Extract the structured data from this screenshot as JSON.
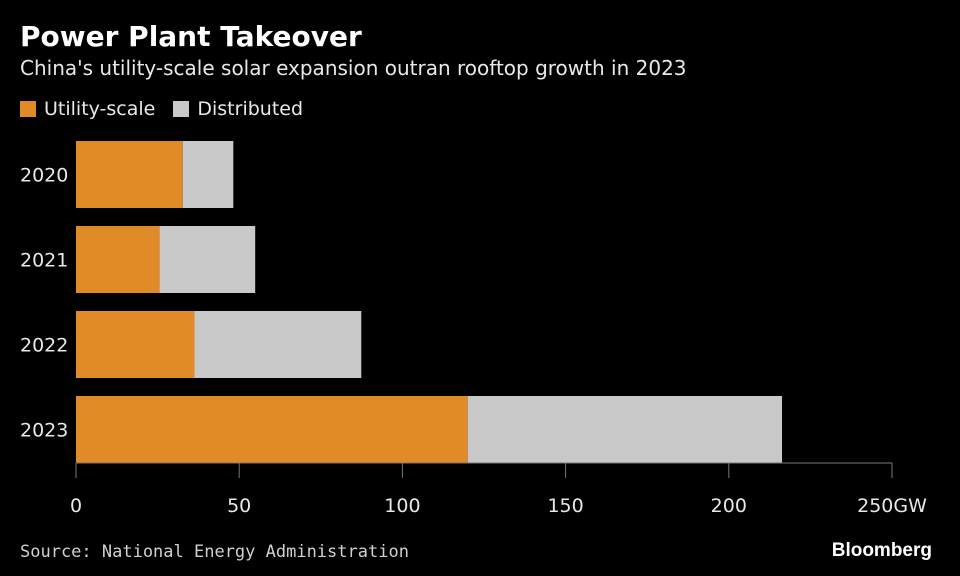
{
  "header": {
    "title": "Power Plant Takeover",
    "subtitle": "China's utility-scale solar expansion outran rooftop growth in 2023"
  },
  "legend": [
    {
      "label": "Utility-scale",
      "color": "#E08A28"
    },
    {
      "label": "Distributed",
      "color": "#C8C8C8"
    }
  ],
  "footer": {
    "source": "Source: National Energy Administration",
    "brand": "Bloomberg"
  },
  "chart_data": {
    "type": "bar",
    "orientation": "horizontal",
    "stacked": true,
    "categories": [
      "2020",
      "2021",
      "2022",
      "2023"
    ],
    "series": [
      {
        "name": "Utility-scale",
        "values": [
          32.7,
          25.6,
          36.3,
          120.0
        ],
        "color": "#E08A28"
      },
      {
        "name": "Distributed",
        "values": [
          15.5,
          29.3,
          51.1,
          96.3
        ],
        "color": "#C8C8C8"
      }
    ],
    "x_ticks": [
      "0",
      "50",
      "100",
      "150",
      "200",
      "250GW"
    ],
    "xlim": [
      0,
      250
    ],
    "grid": false,
    "legend_position": "top-left"
  }
}
